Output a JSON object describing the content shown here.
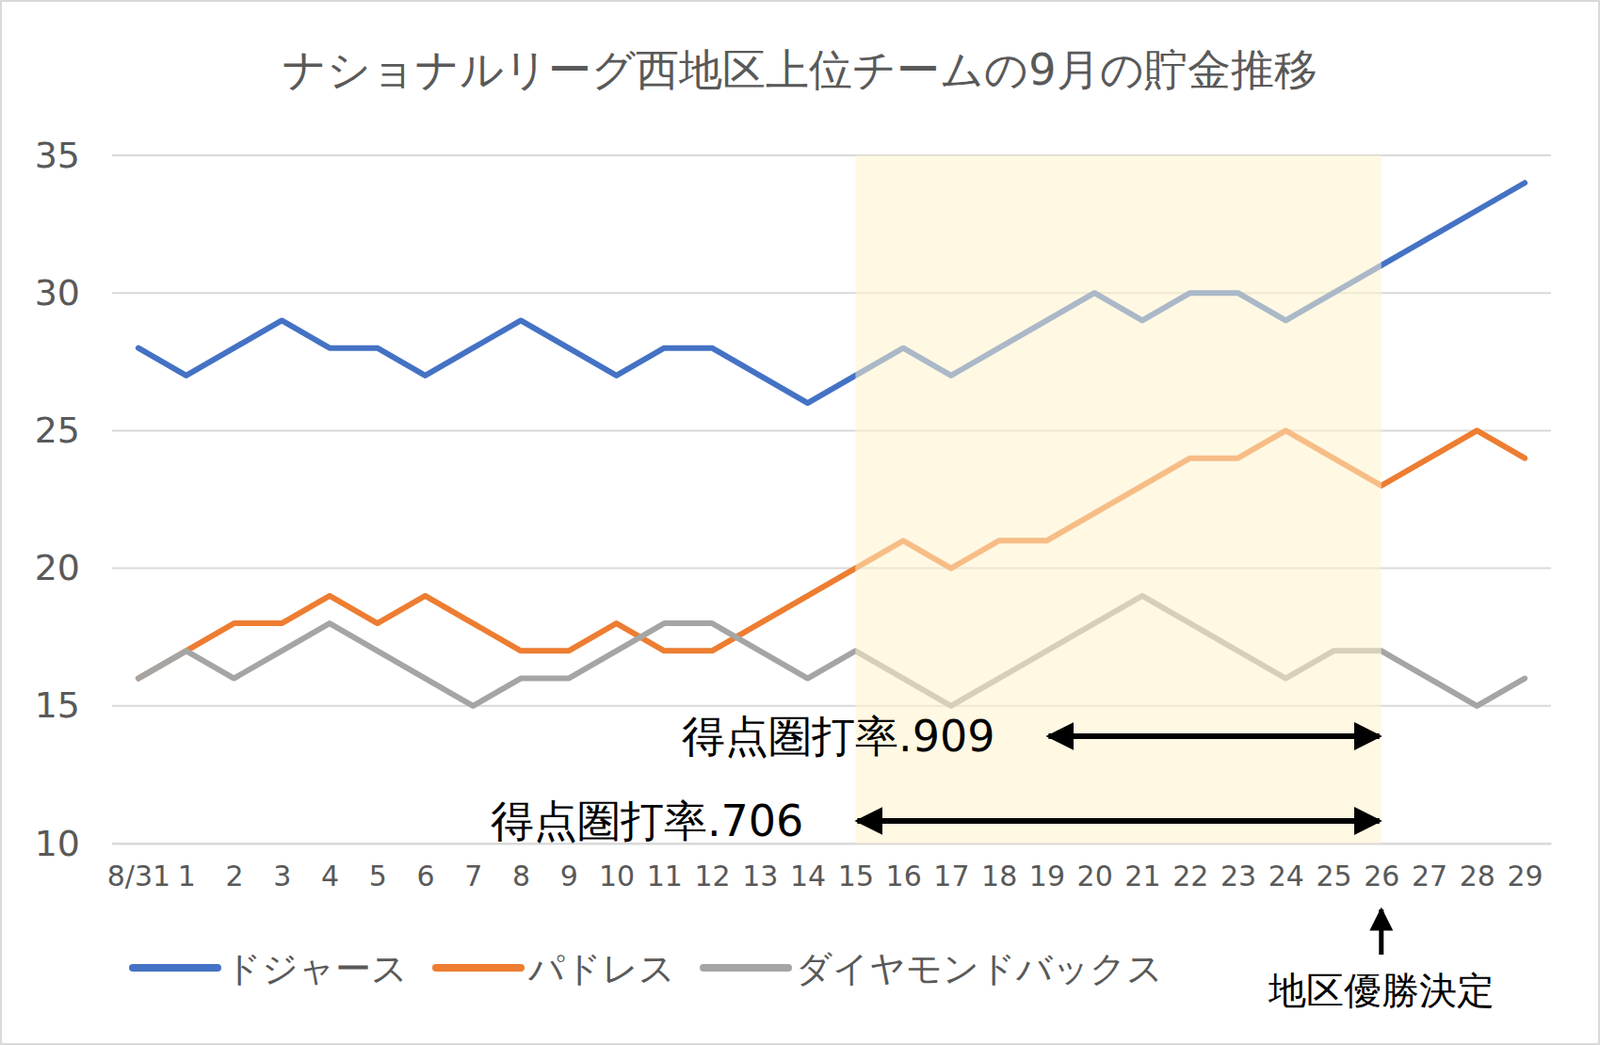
{
  "chart_data": {
    "type": "line",
    "title": "ナショナルリーグ西地区上位チームの9月の貯金推移",
    "categories": [
      "8/31",
      "1",
      "2",
      "3",
      "4",
      "5",
      "6",
      "7",
      "8",
      "9",
      "10",
      "11",
      "12",
      "13",
      "14",
      "15",
      "16",
      "17",
      "18",
      "19",
      "20",
      "21",
      "22",
      "23",
      "24",
      "25",
      "26",
      "27",
      "28",
      "29"
    ],
    "series": [
      {
        "name": "ドジャース",
        "color": "#4472c4",
        "values": [
          28,
          27,
          28,
          29,
          28,
          28,
          27,
          28,
          29,
          28,
          27,
          28,
          28,
          27,
          26,
          27,
          28,
          27,
          28,
          29,
          30,
          29,
          30,
          30,
          29,
          30,
          31,
          32,
          33,
          34
        ]
      },
      {
        "name": "パドレス",
        "color": "#ed7d31",
        "values": [
          16,
          17,
          18,
          18,
          19,
          18,
          19,
          18,
          17,
          17,
          18,
          17,
          17,
          18,
          19,
          20,
          21,
          20,
          21,
          21,
          22,
          23,
          24,
          24,
          25,
          24,
          23,
          24,
          25,
          24
        ]
      },
      {
        "name": "ダイヤモンドバックス",
        "color": "#a5a5a5",
        "values": [
          16,
          17,
          16,
          17,
          18,
          17,
          16,
          15,
          16,
          16,
          17,
          18,
          18,
          17,
          16,
          17,
          16,
          15,
          16,
          17,
          18,
          19,
          18,
          17,
          16,
          17,
          17,
          16,
          15,
          16
        ]
      }
    ],
    "ylim": [
      10,
      35
    ],
    "yticks": [
      10,
      15,
      20,
      25,
      30,
      35
    ],
    "grid": true,
    "legend": "bottom",
    "highlight": {
      "start": "15",
      "end": "26"
    },
    "annotations": [
      {
        "text": "得点圏打率.909",
        "start": "19",
        "end": "26"
      },
      {
        "text": "得点圏打率.706",
        "start": "15",
        "end": "26"
      },
      {
        "text": "地区優勝決定",
        "at": "26"
      }
    ]
  }
}
